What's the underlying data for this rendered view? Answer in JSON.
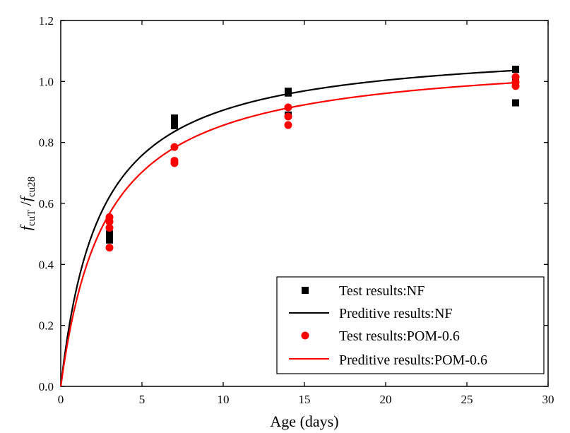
{
  "chart_data": {
    "type": "scatter",
    "title": "",
    "xlabel": "Age (days)",
    "ylabel": {
      "f1": "f",
      "sub1": "cuT",
      "slash": " /",
      "f2": "f",
      "sub2": "cu28"
    },
    "xlim": [
      0,
      30
    ],
    "ylim": [
      0.0,
      1.2
    ],
    "xticks": [
      0,
      5,
      10,
      15,
      20,
      25,
      30
    ],
    "yticks": [
      0.0,
      0.2,
      0.4,
      0.6,
      0.8,
      1.0,
      1.2
    ],
    "xtick_labels": [
      "0",
      "5",
      "10",
      "15",
      "20",
      "25",
      "30"
    ],
    "ytick_labels": [
      "0.0",
      "0.2",
      "0.4",
      "0.6",
      "0.8",
      "1.0",
      "1.2"
    ],
    "grid": false,
    "legend_position": "bottom-right",
    "series": [
      {
        "name": "Test results:NF",
        "kind": "scatter",
        "marker": "square",
        "color": "#000000",
        "points": [
          [
            3,
            0.49
          ],
          [
            3,
            0.48
          ],
          [
            3,
            0.5
          ],
          [
            7,
            0.88
          ],
          [
            7,
            0.865
          ],
          [
            7,
            0.855
          ],
          [
            14,
            0.968
          ],
          [
            14,
            0.962
          ],
          [
            14,
            0.89
          ],
          [
            28,
            1.04
          ],
          [
            28,
            1.0
          ],
          [
            28,
            0.93
          ]
        ]
      },
      {
        "name": "Preditive results:NF",
        "kind": "line",
        "color": "#000000",
        "model": {
          "form": "t/(a+b*t)",
          "a": 2.16,
          "b": 0.888
        },
        "x_range": [
          0,
          28
        ]
      },
      {
        "name": "Test results:POM-0.6",
        "kind": "scatter",
        "marker": "circle",
        "color": "#ff0000",
        "points": [
          [
            3,
            0.555
          ],
          [
            3,
            0.54
          ],
          [
            3,
            0.52
          ],
          [
            3,
            0.455
          ],
          [
            7,
            0.785
          ],
          [
            7,
            0.74
          ],
          [
            7,
            0.732
          ],
          [
            14,
            0.915
          ],
          [
            14,
            0.885
          ],
          [
            14,
            0.857
          ],
          [
            28,
            1.015
          ],
          [
            28,
            0.998
          ],
          [
            28,
            0.985
          ]
        ]
      },
      {
        "name": "Preditive results:POM-0.6",
        "kind": "line",
        "color": "#ff0000",
        "model": {
          "form": "t/(a+b*t)",
          "a": 2.55,
          "b": 0.913
        },
        "x_range": [
          0,
          28
        ]
      }
    ]
  }
}
